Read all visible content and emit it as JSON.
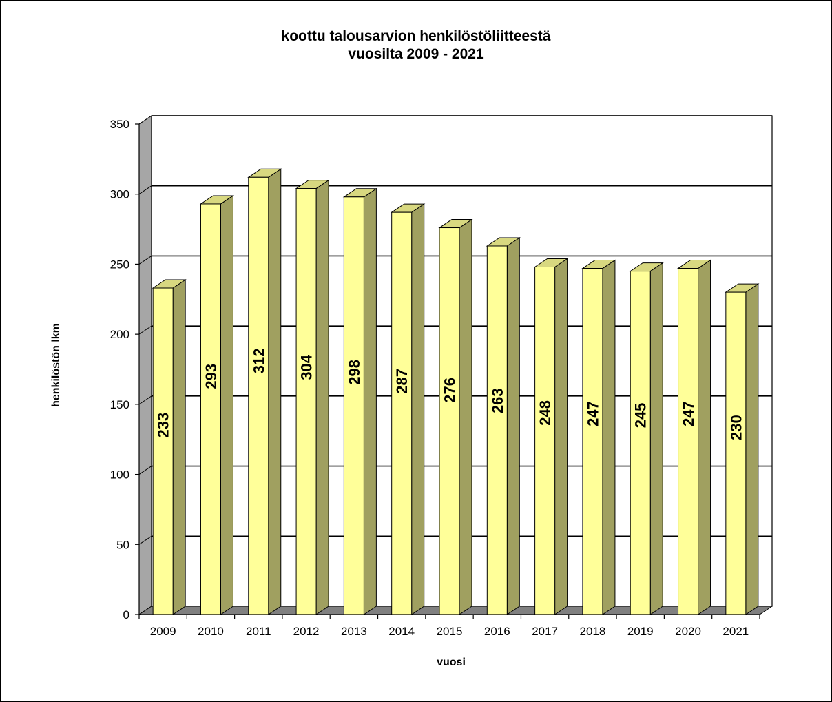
{
  "chart_data": {
    "type": "bar",
    "title_lines": [
      "koottu talousarvion henkilöstöliitteestä",
      "vuosilta 2009 - 2021"
    ],
    "xlabel": "vuosi",
    "ylabel": "henkilöstön lkm",
    "categories": [
      "2009",
      "2010",
      "2011",
      "2012",
      "2013",
      "2014",
      "2015",
      "2016",
      "2017",
      "2018",
      "2019",
      "2020",
      "2021"
    ],
    "values": [
      233,
      293,
      312,
      304,
      298,
      287,
      276,
      263,
      248,
      247,
      245,
      247,
      230
    ],
    "ylim": [
      0,
      350
    ],
    "yticks": [
      0,
      50,
      100,
      150,
      200,
      250,
      300,
      350
    ],
    "grid": true,
    "style": "3d-bar",
    "colors": {
      "bar_front": "#FFFF99",
      "bar_side": "#A0A060",
      "bar_top": "#D8D880",
      "wall": "#A6A6A6",
      "floor": "#808080",
      "gridline": "#000000"
    }
  }
}
